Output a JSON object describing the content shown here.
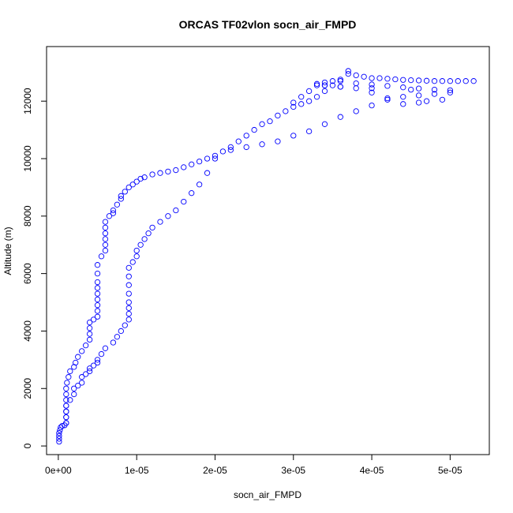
{
  "chart_data": {
    "type": "scatter",
    "title": "ORCAS TF02vlon socn_air_FMPD",
    "xlabel": "socn_air_FMPD",
    "ylabel": "Altitude (m)",
    "xlim": [
      -1.5e-06,
      5.5e-05
    ],
    "ylim": [
      -300,
      13900
    ],
    "x_ticks": [
      {
        "value": 0,
        "label": "0e+00"
      },
      {
        "value": 1e-05,
        "label": "1e-05"
      },
      {
        "value": 2e-05,
        "label": "2e-05"
      },
      {
        "value": 3e-05,
        "label": "3e-05"
      },
      {
        "value": 4e-05,
        "label": "4e-05"
      },
      {
        "value": 5e-05,
        "label": "5e-05"
      }
    ],
    "y_ticks": [
      {
        "value": 0,
        "label": "0"
      },
      {
        "value": 2000,
        "label": "2000"
      },
      {
        "value": 4000,
        "label": "4000"
      },
      {
        "value": 6000,
        "label": "6000"
      },
      {
        "value": 8000,
        "label": "8000"
      },
      {
        "value": 10000,
        "label": "10000"
      },
      {
        "value": 12000,
        "label": "12000"
      }
    ],
    "marker": "open-circle",
    "color": "#0000ff",
    "grid": false,
    "series": [
      {
        "x": [
          1e-07,
          1e-07,
          1e-07,
          1e-07,
          2e-07,
          3e-07,
          5e-07,
          8e-07,
          1e-06,
          1e-06,
          1e-06,
          1e-06,
          1e-06,
          1e-06,
          1e-06,
          1.1e-06,
          1.3e-06,
          1.5e-06,
          2e-06,
          2.2e-06,
          2.5e-06,
          3e-06,
          3.5e-06,
          4e-06,
          4e-06,
          4e-06,
          4e-06,
          4.5e-06,
          5e-06,
          5e-06,
          5e-06,
          5e-06,
          5e-06,
          5e-06,
          5e-06,
          5e-06,
          5e-06,
          5.5e-06,
          6e-06,
          6e-06,
          6e-06,
          6e-06,
          6e-06,
          6e-06,
          6.5e-06,
          7e-06,
          7e-06,
          7.5e-06,
          8e-06,
          8e-06,
          8.5e-06,
          9e-06,
          9.5e-06,
          1e-05,
          1.05e-05,
          1.1e-05,
          1.2e-05,
          1.3e-05,
          1.4e-05,
          1.5e-05,
          1.6e-05,
          1.7e-05,
          1.8e-05,
          1.9e-05,
          2e-05,
          2.1e-05,
          2.2e-05,
          2.3e-05,
          2.4e-05,
          2.5e-05,
          2.6e-05,
          2.7e-05,
          2.8e-05,
          2.9e-05,
          3e-05,
          3.1e-05,
          3.2e-05,
          3.3e-05,
          3.4e-05,
          3.5e-05,
          3.6e-05,
          3.7e-05,
          3.7e-05,
          3.8e-05,
          3.9e-05,
          4e-05,
          4.1e-05,
          4.2e-05,
          4.3e-05,
          4.4e-05,
          4.5e-05,
          4.6e-05,
          4.7e-05,
          4.8e-05,
          4.9e-05,
          5e-05,
          5.1e-05,
          5.2e-05,
          5.3e-05
        ],
        "y": [
          150,
          250,
          350,
          450,
          550,
          650,
          700,
          720,
          800,
          1000,
          1200,
          1400,
          1600,
          1800,
          2000,
          2200,
          2400,
          2600,
          2750,
          2900,
          3100,
          3300,
          3500,
          3700,
          3900,
          4100,
          4300,
          4400,
          4500,
          4700,
          4900,
          5100,
          5300,
          5500,
          5700,
          6000,
          6300,
          6600,
          6800,
          7000,
          7200,
          7400,
          7600,
          7800,
          8000,
          8100,
          8200,
          8400,
          8600,
          8700,
          8850,
          9000,
          9100,
          9200,
          9300,
          9350,
          9450,
          9500,
          9550,
          9600,
          9700,
          9800,
          9900,
          10000,
          10100,
          10250,
          10400,
          10600,
          10800,
          11000,
          11200,
          11300,
          11500,
          11650,
          11800,
          11900,
          12000,
          12150,
          12350,
          12550,
          12700,
          12950,
          13050,
          12900,
          12850,
          12800,
          12800,
          12780,
          12760,
          12740,
          12730,
          12720,
          12710,
          12700,
          12700,
          12700,
          12700,
          12700,
          12700
        ]
      },
      {
        "x": [
          1e-06,
          1e-06,
          1e-06,
          1e-06,
          1.5e-06,
          2e-06,
          2e-06,
          2.5e-06,
          3e-06,
          3e-06,
          3.5e-06,
          4e-06,
          4e-06,
          4.5e-06,
          5e-06,
          5e-06,
          5.5e-06,
          6e-06,
          7e-06,
          7.5e-06,
          8e-06,
          8.5e-06,
          9e-06,
          9e-06,
          9e-06,
          9e-06,
          9e-06,
          9e-06,
          9e-06,
          9e-06,
          9.5e-06,
          1e-05,
          1e-05,
          1.05e-05,
          1.1e-05,
          1.15e-05,
          1.2e-05,
          1.3e-05,
          1.4e-05,
          1.5e-05,
          1.6e-05,
          1.7e-05,
          1.8e-05,
          1.9e-05,
          2e-05,
          2.2e-05,
          2.4e-05,
          2.6e-05,
          2.8e-05,
          3e-05,
          3.2e-05,
          3.4e-05,
          3.6e-05,
          3.8e-05,
          4e-05,
          4.2e-05,
          4.4e-05,
          4.6e-05,
          4.8e-05,
          5e-05,
          4.9e-05,
          4.7e-05,
          4.6e-05,
          4.4e-05,
          4.2e-05,
          4e-05,
          3.8e-05,
          3.6e-05,
          3.4e-05,
          3.3e-05
        ],
        "y": [
          800,
          1000,
          1200,
          1400,
          1600,
          1800,
          2000,
          2100,
          2200,
          2400,
          2500,
          2600,
          2700,
          2800,
          2900,
          3000,
          3200,
          3400,
          3600,
          3800,
          4000,
          4200,
          4400,
          4600,
          4800,
          5000,
          5300,
          5600,
          5900,
          6200,
          6400,
          6600,
          6800,
          7000,
          7200,
          7400,
          7600,
          7800,
          8000,
          8200,
          8500,
          8800,
          9100,
          9500,
          10000,
          10300,
          10400,
          10500,
          10600,
          10800,
          10950,
          11200,
          11450,
          11650,
          11850,
          12050,
          12150,
          12200,
          12250,
          12300,
          12050,
          12000,
          11950,
          11900,
          12100,
          12300,
          12450,
          12500,
          12550,
          12600
        ]
      },
      {
        "x": [
          3e-05,
          3.1e-05,
          3.2e-05,
          3.3e-05,
          3.4e-05,
          3.5e-05,
          3.6e-05,
          3.8e-05,
          4e-05,
          4.2e-05,
          4.4e-05,
          4.6e-05,
          4.8e-05,
          5e-05,
          4.5e-05,
          4e-05,
          3.6e-05,
          3.4e-05
        ],
        "y": [
          11950,
          12150,
          12350,
          12550,
          12650,
          12700,
          12750,
          12620,
          12580,
          12530,
          12480,
          12440,
          12400,
          12380,
          12400,
          12450,
          12500,
          12550
        ]
      }
    ]
  }
}
